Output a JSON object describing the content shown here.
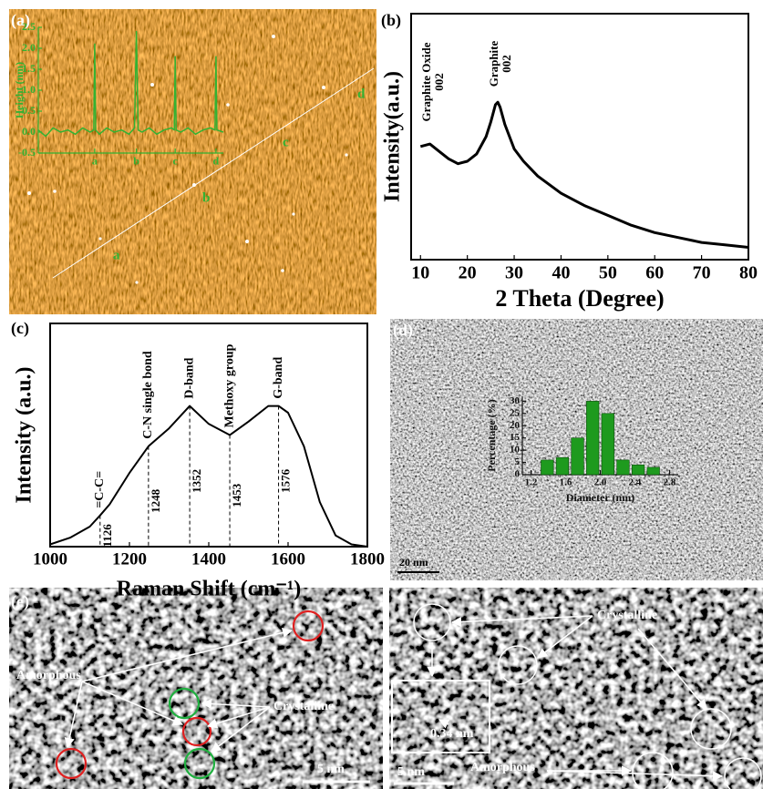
{
  "panels": {
    "a": {
      "label": "(a)",
      "points": [
        "a",
        "b",
        "c",
        "d"
      ]
    },
    "b": {
      "label": "(b)"
    },
    "c": {
      "label": "(c)"
    },
    "d": {
      "label": "(d)",
      "scale_bar": "20 nm"
    },
    "e": {
      "label": "(e)",
      "left": {
        "amorphous": "Amorphous",
        "crystalline": "Crystalline",
        "scale_bar": "5 nm"
      },
      "right": {
        "crystalline": "Crystalline",
        "spacing": "0.34 nm",
        "scale_bar": "5 nm",
        "amorphous": "Amorphous"
      }
    }
  },
  "chart_data": [
    {
      "type": "line",
      "ylabel": "Height (nm)",
      "color": "#33b233",
      "x": [
        0,
        4,
        8,
        12,
        16,
        20,
        24,
        28,
        30,
        30.5,
        31,
        33,
        37,
        41,
        45,
        49,
        52,
        53,
        54,
        56,
        60,
        64,
        68,
        72,
        73.5,
        74,
        74.5,
        77,
        81,
        85,
        89,
        93,
        95.5,
        96,
        96.5,
        100
      ],
      "values": [
        0.05,
        -0.1,
        0.1,
        0,
        0.05,
        -0.05,
        0.1,
        0,
        0.05,
        2.1,
        0.05,
        -0.05,
        0.1,
        0,
        0.05,
        -0.05,
        0.1,
        2.4,
        0.05,
        0,
        0.1,
        -0.05,
        0.05,
        0.1,
        0.05,
        1.8,
        0.05,
        0,
        0.1,
        -0.05,
        0.05,
        0.1,
        0.05,
        1.8,
        0.05,
        0
      ],
      "xlim": [
        0,
        100
      ],
      "xticks": [
        {
          "value": 30.5,
          "label": "a"
        },
        {
          "value": 53,
          "label": "b"
        },
        {
          "value": 74,
          "label": "c"
        },
        {
          "value": 96,
          "label": "d"
        }
      ],
      "ylim": [
        -0.5,
        2.5
      ],
      "yticks": [
        -0.5,
        {
          "value": 0,
          "label": "0.0"
        },
        0.5,
        {
          "value": 1,
          "label": "1.0"
        },
        1.5,
        {
          "value": 2,
          "label": "2.0"
        },
        2.5
      ]
    },
    {
      "type": "line",
      "xlabel": "2 Theta (Degree)",
      "ylabel": "Intensity(a.u.)",
      "color": "#000000",
      "annotations": [
        [
          "Graphite Oxide",
          "002"
        ],
        [
          "Graphite",
          "002"
        ]
      ],
      "x": [
        10,
        12,
        14,
        16,
        18,
        20,
        22,
        24,
        25,
        26,
        26.5,
        27,
        28,
        30,
        32,
        35,
        40,
        45,
        50,
        55,
        60,
        65,
        70,
        75,
        80
      ],
      "values": [
        46,
        47,
        44,
        41,
        39,
        40,
        43,
        50,
        56,
        63,
        64,
        62,
        55,
        45,
        40,
        34,
        27,
        22,
        18,
        14,
        11,
        9,
        7,
        6,
        5
      ],
      "xlim": [
        8,
        80
      ],
      "xticks": [
        10,
        20,
        30,
        40,
        50,
        60,
        70,
        80
      ],
      "ylim": [
        0,
        100
      ]
    },
    {
      "type": "line",
      "xlabel": "Raman Shift (cm⁻¹)",
      "ylabel": "Intensity (a.u.)",
      "color": "#000000",
      "markers": [
        1126,
        1248,
        1352,
        1453,
        1576
      ],
      "marker_labels": [
        "=C-C=",
        "C-N single bond",
        "D-band",
        "Methoxy group",
        "G-band"
      ],
      "x": [
        1000,
        1050,
        1100,
        1126,
        1150,
        1200,
        1248,
        1300,
        1352,
        1400,
        1453,
        1500,
        1550,
        1576,
        1600,
        1640,
        1680,
        1720,
        1760,
        1800
      ],
      "values": [
        1,
        4,
        9,
        14,
        19,
        33,
        45,
        53,
        63,
        55,
        50,
        56,
        63,
        63,
        60,
        45,
        20,
        5,
        1,
        0
      ],
      "xlim": [
        1000,
        1800
      ],
      "xticks": [
        1000,
        1200,
        1400,
        1600,
        1800
      ],
      "ylim": [
        0,
        100
      ]
    },
    {
      "type": "histogram",
      "xlabel": "Diameter (nm)",
      "ylabel": "Percentage (%)",
      "color": "#1e9a1e",
      "bins": [
        1.3,
        1.475,
        1.65,
        1.825,
        2.0,
        2.175,
        2.35,
        2.525,
        2.7
      ],
      "values": [
        6,
        7,
        15,
        30,
        25,
        6,
        4,
        3
      ],
      "xlim": [
        1.1,
        2.9
      ],
      "xticks": [
        1.2,
        1.6,
        {
          "value": 2,
          "label": "2.0"
        },
        2.4,
        2.8
      ],
      "ylim": [
        0,
        32
      ],
      "yticks": [
        0,
        5,
        10,
        15,
        20,
        25,
        30
      ]
    }
  ]
}
